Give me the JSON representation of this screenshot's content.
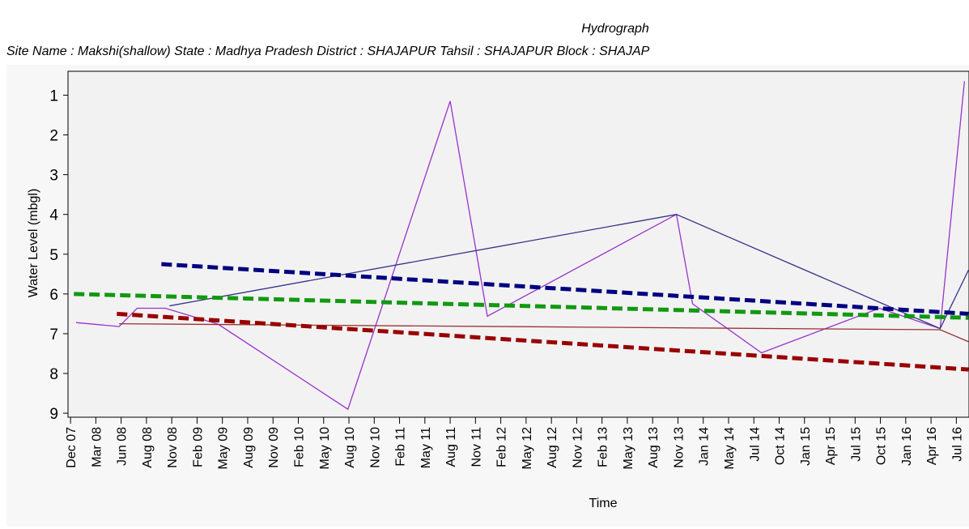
{
  "chart_data": {
    "type": "line",
    "title": "Hydrograph",
    "subtitle": "Site Name : Makshi(shallow)  State : Madhya Pradesh District : SHAJAPUR  Tahsil : SHAJAPUR  Block : SHAJAP",
    "y_label": "Water Level (mbgl)",
    "x_label": "Time",
    "y_inverted": true,
    "ylim": [
      0.4,
      9.1
    ],
    "yticks": [
      1,
      2,
      3,
      4,
      5,
      6,
      7,
      8,
      9
    ],
    "xlim": [
      -0.1,
      35.5
    ],
    "xticks": [
      {
        "value": 0,
        "label": "Dec 07"
      },
      {
        "value": 1,
        "label": "Mar 08"
      },
      {
        "value": 2,
        "label": "Jun 08"
      },
      {
        "value": 3,
        "label": "Aug 08"
      },
      {
        "value": 4,
        "label": "Nov 08"
      },
      {
        "value": 5,
        "label": "Feb 09"
      },
      {
        "value": 6,
        "label": "May 09"
      },
      {
        "value": 7,
        "label": "Aug 09"
      },
      {
        "value": 8,
        "label": "Nov 09"
      },
      {
        "value": 9,
        "label": "Feb 10"
      },
      {
        "value": 10,
        "label": "May 10"
      },
      {
        "value": 11,
        "label": "Aug 10"
      },
      {
        "value": 12,
        "label": "Nov 10"
      },
      {
        "value": 13,
        "label": "Feb 11"
      },
      {
        "value": 14,
        "label": "May 11"
      },
      {
        "value": 15,
        "label": "Aug 11"
      },
      {
        "value": 16,
        "label": "Nov 11"
      },
      {
        "value": 17,
        "label": "Feb 12"
      },
      {
        "value": 18,
        "label": "May 12"
      },
      {
        "value": 19,
        "label": "Aug 12"
      },
      {
        "value": 20,
        "label": "Nov 12"
      },
      {
        "value": 21,
        "label": "Feb 13"
      },
      {
        "value": 22,
        "label": "May 13"
      },
      {
        "value": 23,
        "label": "Aug 13"
      },
      {
        "value": 24,
        "label": "Nov 13"
      },
      {
        "value": 25,
        "label": "Jan 14"
      },
      {
        "value": 26,
        "label": "May 14"
      },
      {
        "value": 27,
        "label": "Jul 14"
      },
      {
        "value": 28,
        "label": "Oct 14"
      },
      {
        "value": 29,
        "label": "Jan 15"
      },
      {
        "value": 30,
        "label": "Apr 15"
      },
      {
        "value": 31,
        "label": "Jul 15"
      },
      {
        "value": 32,
        "label": "Oct 15"
      },
      {
        "value": 33,
        "label": "Jan 16"
      },
      {
        "value": 34,
        "label": "Apr 16"
      },
      {
        "value": 35,
        "label": "Jul 16"
      }
    ],
    "series": [
      {
        "color": "#9933cc",
        "dashed": false,
        "x": [
          0.22,
          1.92,
          2.63,
          3.75,
          5.83,
          10.96,
          15.0,
          16.47,
          23.94,
          24.58,
          27.3,
          31.96,
          34.36,
          35.32
        ],
        "values": [
          6.72,
          6.82,
          6.36,
          6.36,
          6.76,
          8.9,
          1.15,
          6.56,
          4.0,
          6.25,
          7.48,
          6.36,
          6.87,
          0.65
        ]
      },
      {
        "color": "#333388",
        "dashed": false,
        "x": [
          3.91,
          23.94,
          34.36,
          35.48
        ],
        "values": [
          6.3,
          4.0,
          6.87,
          5.4
        ]
      },
      {
        "color": "#993333",
        "dashed": false,
        "x": [
          1.92,
          34.36,
          35.48
        ],
        "values": [
          6.75,
          6.9,
          7.2
        ]
      },
      {
        "color": "#000080",
        "dashed": true,
        "x": [
          3.59,
          35.48
        ],
        "values": [
          5.25,
          6.5
        ]
      },
      {
        "color": "#119911",
        "dashed": true,
        "x": [
          0.13,
          35.48
        ],
        "values": [
          6.0,
          6.6
        ]
      },
      {
        "color": "#990000",
        "dashed": true,
        "x": [
          1.83,
          35.48
        ],
        "values": [
          6.5,
          7.9
        ]
      }
    ]
  }
}
